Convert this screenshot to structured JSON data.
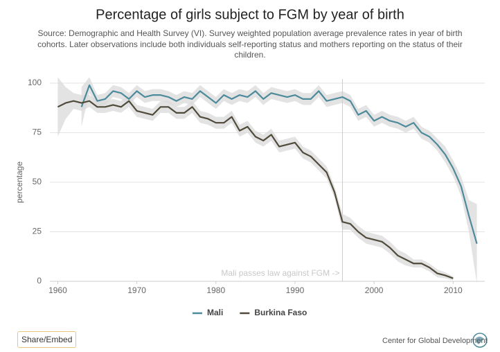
{
  "chart_data": {
    "type": "line",
    "title": "Percentage of girls subject to FGM by year of birth",
    "subtitle": "Source: Demographic and Health Survey (VI). Survey weighted population average prevalence rates in year of birth cohorts. Later observations include both individuals self-reporting status and mothers reporting on the status of their children.",
    "ylabel": "percentage",
    "x": [
      1960,
      1961,
      1962,
      1963,
      1964,
      1965,
      1966,
      1967,
      1968,
      1969,
      1970,
      1971,
      1972,
      1973,
      1974,
      1975,
      1976,
      1977,
      1978,
      1979,
      1980,
      1981,
      1982,
      1983,
      1984,
      1985,
      1986,
      1987,
      1988,
      1989,
      1990,
      1991,
      1992,
      1993,
      1994,
      1995,
      1996,
      1997,
      1998,
      1999,
      2000,
      2001,
      2002,
      2003,
      2004,
      2005,
      2006,
      2007,
      2008,
      2009,
      2010,
      2011,
      2012,
      2013
    ],
    "series": [
      {
        "name": "Mali",
        "color": "#4d8a9b",
        "values": [
          null,
          null,
          null,
          88,
          99,
          91,
          92,
          96,
          95,
          92,
          96,
          93,
          94,
          94,
          93,
          91,
          93,
          92,
          96,
          93,
          90,
          94,
          92,
          94,
          93,
          96,
          92,
          95,
          94,
          93,
          94,
          92,
          92,
          96,
          91,
          92,
          93,
          91,
          84,
          86,
          81,
          83,
          81,
          80,
          78,
          80,
          75,
          73,
          69,
          64,
          57,
          48,
          33,
          19
        ],
        "ci": [
          null,
          null,
          null,
          10,
          4,
          3,
          3,
          3,
          3,
          3,
          3,
          3,
          3,
          3,
          3,
          3,
          3,
          3,
          3,
          3,
          3,
          3,
          3,
          3,
          3,
          3,
          3,
          3,
          3,
          3,
          3,
          3,
          3,
          3,
          3,
          3,
          3,
          3,
          3,
          3,
          3,
          3,
          3,
          3,
          3,
          3,
          3,
          3,
          3,
          4,
          4,
          5,
          8,
          20
        ]
      },
      {
        "name": "Burkina Faso",
        "color": "#4f4a3a",
        "values": [
          88,
          90,
          91,
          90,
          91,
          88,
          88,
          89,
          88,
          91,
          86,
          85,
          84,
          88,
          88,
          85,
          85,
          88,
          83,
          82,
          80,
          80,
          83,
          76,
          78,
          73,
          71,
          74,
          68,
          69,
          70,
          65,
          63,
          59,
          55,
          45,
          30,
          29,
          25,
          22,
          21,
          20,
          17,
          13,
          11,
          9,
          9,
          7,
          4,
          3,
          1.5,
          null,
          null,
          null
        ],
        "ci": [
          15,
          8,
          4,
          4,
          3,
          3,
          3,
          3,
          3,
          3,
          3,
          3,
          3,
          3,
          3,
          3,
          3,
          3,
          3,
          3,
          3,
          3,
          3,
          3,
          3,
          3,
          3,
          3,
          3,
          3,
          3,
          3,
          3,
          3,
          3,
          3,
          4,
          3,
          3,
          3,
          3,
          3,
          3,
          3,
          3,
          2,
          2,
          2,
          2,
          1.5,
          1,
          null,
          null,
          null
        ]
      }
    ],
    "xlim": [
      1959,
      2014
    ],
    "xticks": [
      1960,
      1970,
      1980,
      1990,
      2000,
      2010
    ],
    "ylim": [
      0,
      100
    ],
    "yticks": [
      0,
      25,
      50,
      75,
      100
    ],
    "grid": true,
    "annotation": {
      "x": 1996,
      "text": "Mali passes law against FGM ->"
    },
    "legend": "bottom"
  },
  "share_button": "Share/Embed",
  "footer": "Center for Global Development"
}
